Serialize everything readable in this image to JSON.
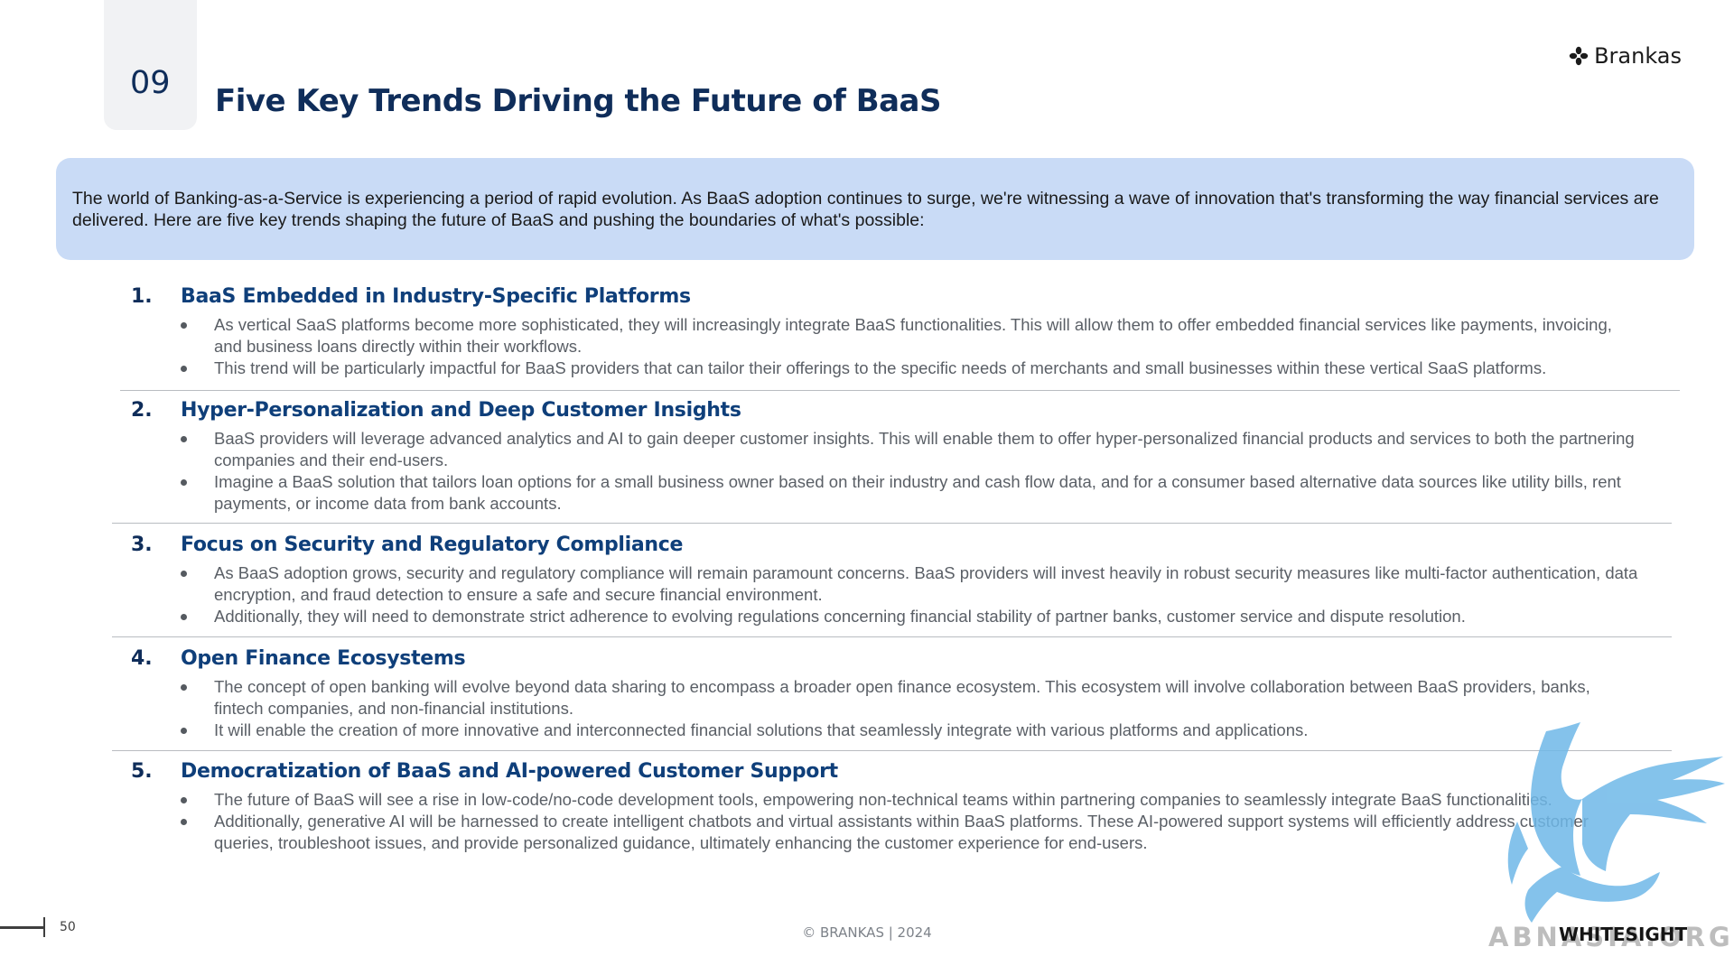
{
  "header": {
    "section_number": "09",
    "title": "Five Key Trends Driving the Future of BaaS",
    "brand": "Brankas",
    "brand_icon": "flower-mark-icon",
    "brand_color": "#1b1b1b",
    "title_color": "#0f2d5a"
  },
  "intro": {
    "text": "The world of Banking-as-a-Service is experiencing a period of rapid evolution. As BaaS adoption continues to surge, we're witnessing a wave of innovation that's transforming the way financial services are delivered. Here are five key trends shaping the future of BaaS and pushing the boundaries of what's possible:",
    "background_color": "#c9dbf6"
  },
  "trends": [
    {
      "number": "1.",
      "title": "BaaS Embedded in Industry-Specific Platforms",
      "bullets": [
        "As vertical SaaS platforms become more sophisticated, they will increasingly integrate BaaS functionalities. This will allow them to offer embedded financial services like payments, invoicing, and business loans directly within their workflows.",
        "This trend will be particularly impactful for BaaS providers that can tailor their offerings to the specific needs of merchants and small businesses within these vertical SaaS platforms."
      ]
    },
    {
      "number": "2.",
      "title": "Hyper-Personalization and Deep Customer Insights",
      "bullets": [
        "BaaS providers will leverage advanced analytics and AI to gain deeper customer insights. This will enable them to offer hyper-personalized financial products and services to both the partnering companies and their end-users.",
        "Imagine a BaaS solution that tailors loan options for a small business owner based on their industry and cash flow data, and for a consumer based  alternative data sources like utility bills, rent payments, or income data from bank accounts."
      ]
    },
    {
      "number": "3.",
      "title": "Focus on Security and Regulatory Compliance",
      "bullets": [
        "As BaaS adoption grows, security and regulatory compliance will remain paramount concerns.  BaaS providers will invest heavily in robust security measures like multi-factor authentication, data encryption, and fraud detection to ensure a safe and secure financial environment.",
        "Additionally, they will need to demonstrate strict adherence to evolving regulations concerning financial stability of partner banks, customer service and dispute resolution."
      ]
    },
    {
      "number": "4.",
      "title": "Open Finance Ecosystems",
      "bullets": [
        "The concept of open banking will evolve beyond data sharing to encompass a broader open finance ecosystem. This ecosystem will involve collaboration between BaaS providers, banks, fintech companies, and non-financial institutions.",
        "It will enable the creation of more innovative and interconnected financial solutions that seamlessly integrate with various platforms and applications."
      ]
    },
    {
      "number": "5.",
      "title": "Democratization of BaaS and AI-powered Customer Support",
      "bullets": [
        "The future of BaaS will see a rise in low-code/no-code development tools, empowering non-technical teams within partnering companies to seamlessly integrate BaaS functionalities.",
        "Additionally, generative AI will be harnessed to create intelligent chatbots and virtual assistants within BaaS platforms. These AI-powered support systems will efficiently address customer queries, troubleshoot issues, and provide personalized guidance, ultimately enhancing the customer experience for end-users."
      ]
    }
  ],
  "footer": {
    "page_number": "50",
    "copyright": "© BRANKAS | 2024"
  },
  "watermark": {
    "icon": "griffin-watermark-icon",
    "color": "#6fb8e8",
    "word": "ABNASIA.ORG",
    "overlay": "WHITESIGHT"
  }
}
